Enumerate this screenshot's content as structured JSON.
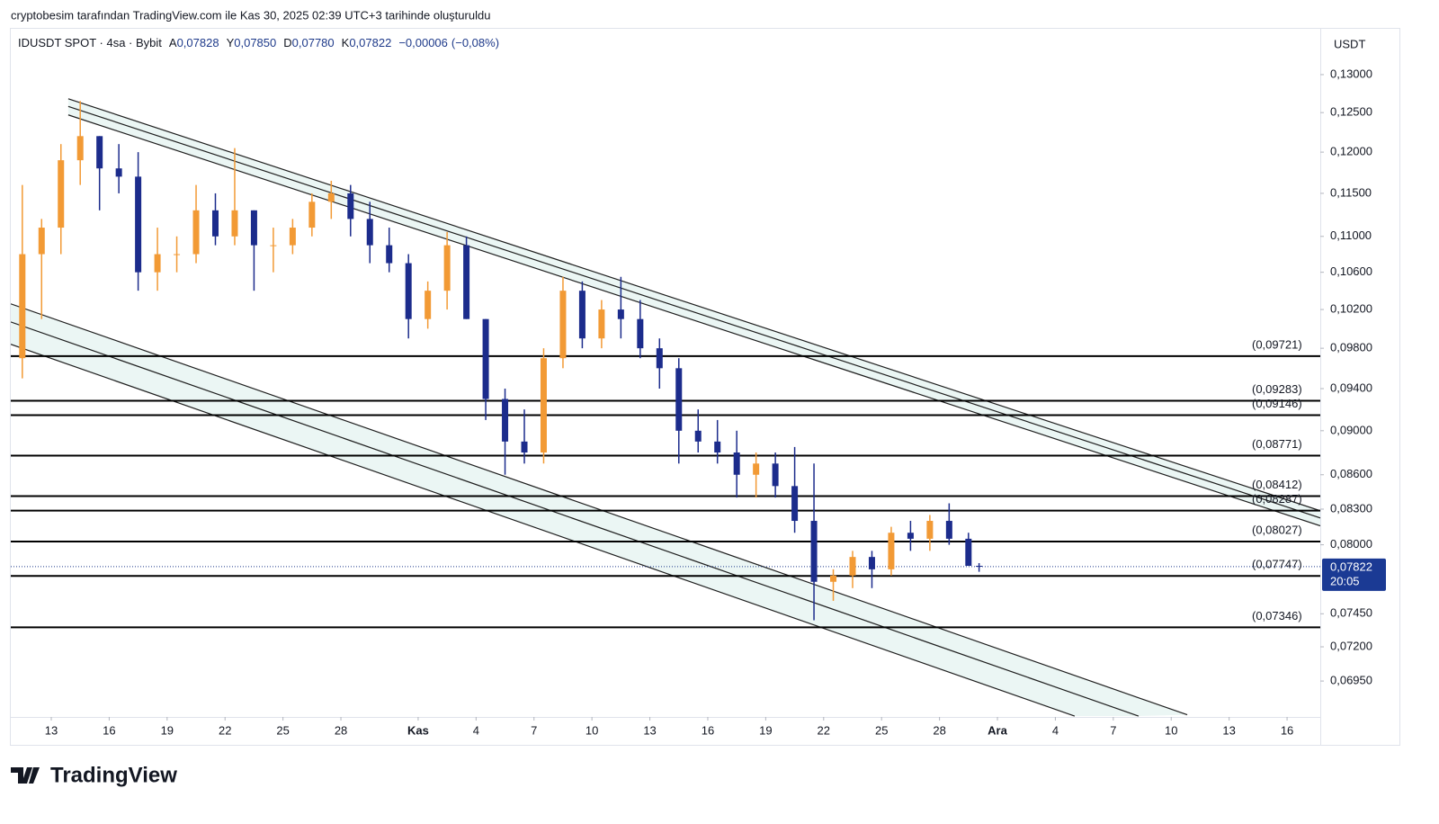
{
  "chart_data": {
    "type": "candlestick",
    "watermark": "cryptobesim tarafından TradingView.com ile Kas 30, 2025 02:39 UTC+3 tarihinde oluşturuldu",
    "symbol": "IDUSDT SPOT · 4sa · Bybit",
    "ohlc_names": [
      "A",
      "Y",
      "D",
      "K"
    ],
    "ohlc": [
      {
        "value": 0.07828,
        "label": "0,07828"
      },
      {
        "value": 0.0785,
        "label": "0,07850"
      },
      {
        "value": 0.0778,
        "label": "0,07780"
      },
      {
        "value": 0.07822,
        "label": "0,07822"
      }
    ],
    "change": {
      "value": -6e-05,
      "label": "−0,00006"
    },
    "change_pct": {
      "value": -0.08,
      "label": "(−0,08%)"
    },
    "currency": "USDT",
    "last_price": {
      "value": 0.07822,
      "label": "0,07822"
    },
    "countdown": "20:05",
    "logo": "TradingView",
    "log_scale": true,
    "up_color": "#f29a35",
    "down_color": "#1c2c8c",
    "band_color": "#e6f4f1",
    "x": [
      11.5,
      12.5,
      13.5,
      14.5,
      15.5,
      16.5,
      17.5,
      18.5,
      19.5,
      20.5,
      21.5,
      22.5,
      23.5,
      24.5,
      25.5,
      26.5,
      27.5,
      28.5,
      29.5,
      30.5,
      31.5,
      32.5,
      33.5,
      34.5,
      35.5,
      36.5,
      37.5,
      38.5,
      39.5,
      40.5,
      41.5,
      42.5,
      43.5,
      44.5,
      45.5,
      46.5,
      47.5,
      48.5,
      49.5,
      50.5,
      51.5,
      52.5,
      53.5,
      54.5,
      55.5,
      56.5,
      57.5,
      58.5,
      59.5,
      60.5,
      61.05
    ],
    "open": [
      0.097,
      0.108,
      0.111,
      0.119,
      0.122,
      0.118,
      0.117,
      0.106,
      0.108,
      0.108,
      0.113,
      0.11,
      0.113,
      0.109,
      0.109,
      0.111,
      0.114,
      0.115,
      0.112,
      0.109,
      0.107,
      0.101,
      0.104,
      0.109,
      0.101,
      0.093,
      0.089,
      0.088,
      0.097,
      0.104,
      0.099,
      0.102,
      0.101,
      0.098,
      0.096,
      0.09,
      0.089,
      0.088,
      0.086,
      0.087,
      0.085,
      0.082,
      0.077,
      0.0775,
      0.079,
      0.078,
      0.081,
      0.0805,
      0.082,
      0.0805,
      0.07828
    ],
    "high": [
      0.116,
      0.112,
      0.121,
      0.1265,
      0.122,
      0.121,
      0.12,
      0.111,
      0.11,
      0.116,
      0.115,
      0.1205,
      0.113,
      0.111,
      0.112,
      0.115,
      0.1165,
      0.116,
      0.114,
      0.111,
      0.108,
      0.105,
      0.1105,
      0.11,
      0.101,
      0.094,
      0.092,
      0.098,
      0.1055,
      0.105,
      0.103,
      0.1055,
      0.103,
      0.099,
      0.097,
      0.092,
      0.091,
      0.09,
      0.088,
      0.088,
      0.0885,
      0.087,
      0.078,
      0.0795,
      0.0795,
      0.0815,
      0.082,
      0.0825,
      0.0835,
      0.081,
      0.0785
    ],
    "low": [
      0.095,
      0.101,
      0.108,
      0.116,
      0.113,
      0.115,
      0.104,
      0.104,
      0.106,
      0.107,
      0.109,
      0.109,
      0.104,
      0.106,
      0.108,
      0.11,
      0.112,
      0.11,
      0.107,
      0.106,
      0.099,
      0.1,
      0.102,
      0.101,
      0.091,
      0.086,
      0.087,
      0.087,
      0.096,
      0.098,
      0.098,
      0.099,
      0.097,
      0.094,
      0.087,
      0.088,
      0.087,
      0.084,
      0.084,
      0.084,
      0.081,
      0.074,
      0.0755,
      0.0765,
      0.0765,
      0.0775,
      0.0795,
      0.0795,
      0.08,
      0.0785,
      0.0778
    ],
    "close": [
      0.108,
      0.111,
      0.119,
      0.122,
      0.118,
      0.117,
      0.106,
      0.108,
      0.108,
      0.113,
      0.11,
      0.113,
      0.109,
      0.109,
      0.111,
      0.114,
      0.115,
      0.112,
      0.109,
      0.107,
      0.101,
      0.104,
      0.109,
      0.101,
      0.093,
      0.089,
      0.088,
      0.097,
      0.104,
      0.099,
      0.102,
      0.101,
      0.098,
      0.096,
      0.09,
      0.089,
      0.088,
      0.086,
      0.087,
      0.085,
      0.082,
      0.077,
      0.0775,
      0.079,
      0.078,
      0.081,
      0.0805,
      0.082,
      0.0805,
      0.07828,
      0.07822
    ],
    "xlim": [
      10.904,
      78.72
    ],
    "ylim": [
      0.06697,
      0.1363
    ],
    "xticks": [
      {
        "value": 13,
        "label": "13"
      },
      {
        "value": 16,
        "label": "16"
      },
      {
        "value": 19,
        "label": "19"
      },
      {
        "value": 22,
        "label": "22"
      },
      {
        "value": 25,
        "label": "25"
      },
      {
        "value": 28,
        "label": "28"
      },
      {
        "value": 32,
        "label": "Kas"
      },
      {
        "value": 35,
        "label": "4"
      },
      {
        "value": 38,
        "label": "7"
      },
      {
        "value": 41,
        "label": "10"
      },
      {
        "value": 44,
        "label": "13"
      },
      {
        "value": 47,
        "label": "16"
      },
      {
        "value": 50,
        "label": "19"
      },
      {
        "value": 53,
        "label": "22"
      },
      {
        "value": 56,
        "label": "25"
      },
      {
        "value": 59,
        "label": "28"
      },
      {
        "value": 62,
        "label": "Ara"
      },
      {
        "value": 65,
        "label": "4"
      },
      {
        "value": 68,
        "label": "7"
      },
      {
        "value": 71,
        "label": "10"
      },
      {
        "value": 74,
        "label": "13"
      },
      {
        "value": 77,
        "label": "16"
      }
    ],
    "yticks": [
      {
        "value": 0.13,
        "label": "0,13000"
      },
      {
        "value": 0.125,
        "label": "0,12500"
      },
      {
        "value": 0.12,
        "label": "0,12000"
      },
      {
        "value": 0.115,
        "label": "0,11500"
      },
      {
        "value": 0.11,
        "label": "0,11000"
      },
      {
        "value": 0.106,
        "label": "0,10600"
      },
      {
        "value": 0.102,
        "label": "0,10200"
      },
      {
        "value": 0.098,
        "label": "0,09800"
      },
      {
        "value": 0.094,
        "label": "0,09400"
      },
      {
        "value": 0.09,
        "label": "0,09000"
      },
      {
        "value": 0.086,
        "label": "0,08600"
      },
      {
        "value": 0.083,
        "label": "0,08300"
      },
      {
        "value": 0.08,
        "label": "0,08000"
      },
      {
        "value": 0.0745,
        "label": "0,07450"
      },
      {
        "value": 0.072,
        "label": "0,07200"
      },
      {
        "value": 0.0695,
        "label": "0,06950"
      }
    ],
    "levels": [
      {
        "value": 0.09721,
        "label": "(0,09721)"
      },
      {
        "value": 0.09283,
        "label": "(0,09283)"
      },
      {
        "value": 0.09146,
        "label": "(0,09146)"
      },
      {
        "value": 0.08771,
        "label": "(0,08771)"
      },
      {
        "value": 0.08412,
        "label": "(0,08412)"
      },
      {
        "value": 0.08287,
        "label": "(0,08287)"
      },
      {
        "value": 0.08027,
        "label": "(0,08027)"
      },
      {
        "value": 0.07747,
        "label": "(0,07747)"
      },
      {
        "value": 0.07346,
        "label": "(0,07346)"
      }
    ],
    "channels": [
      [
        {
          "x": [
            13.88,
            78.72
          ],
          "y": [
            0.1268,
            0.08286
          ]
        },
        {
          "x": [
            13.88,
            78.72
          ],
          "y": [
            0.1258,
            0.08225
          ]
        },
        {
          "x": [
            13.88,
            78.72
          ],
          "y": [
            0.1247,
            0.08158
          ]
        }
      ],
      [
        {
          "x": [
            10.904,
            71.83
          ],
          "y": [
            0.1026,
            0.06712
          ]
        },
        {
          "x": [
            10.904,
            69.31
          ],
          "y": [
            0.1007,
            0.06703
          ]
        },
        {
          "x": [
            10.904,
            66.0
          ],
          "y": [
            0.0984,
            0.06703
          ]
        }
      ]
    ]
  }
}
